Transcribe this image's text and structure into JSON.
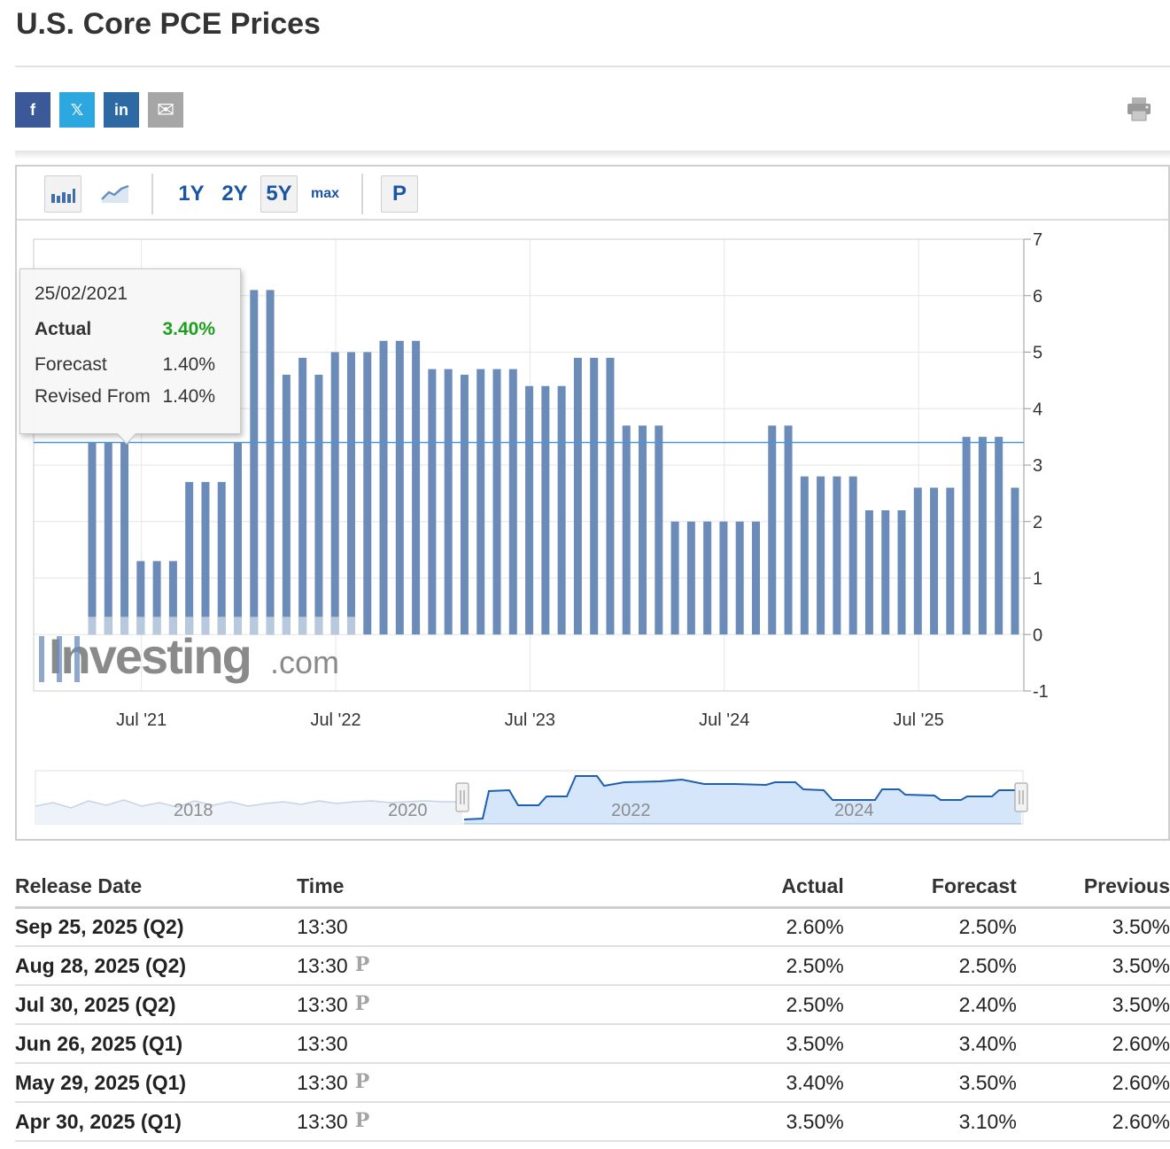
{
  "page": {
    "title": "U.S. Core PCE Prices"
  },
  "colors": {
    "bar": "#6b8cb8",
    "bar_light": "#b8c9de",
    "up": "#1e9e1e",
    "down": "#e01919",
    "link": "#1a55a3"
  },
  "share": [
    {
      "name": "facebook-share-button",
      "icon": "facebook-icon",
      "glyph": "f",
      "color": "#3b5998"
    },
    {
      "name": "twitter-share-button",
      "icon": "x-icon",
      "glyph": "𝕏",
      "color": "#2ca7e0"
    },
    {
      "name": "linkedin-share-button",
      "icon": "linkedin-icon",
      "glyph": "in",
      "color": "#2d6aa4"
    },
    {
      "name": "email-share-button",
      "icon": "envelope-icon",
      "glyph": "✉",
      "color": "#a6a6a6"
    }
  ],
  "toolbar": {
    "range_1y": "1Y",
    "range_2y": "2Y",
    "range_5y": "5Y",
    "range_max": "max",
    "preliminary": "P",
    "selected_range": "5Y"
  },
  "tooltip": {
    "date": "25/02/2021",
    "actual_label": "Actual",
    "actual_value": "3.40%",
    "forecast_label": "Forecast",
    "forecast_value": "1.40%",
    "revised_label": "Revised From",
    "revised_value": "1.40%"
  },
  "watermark": {
    "brand": "Investing",
    "suffix": ".com"
  },
  "chart_data": {
    "type": "bar",
    "y_ticks": [
      "7",
      "6",
      "5",
      "4",
      "3",
      "2",
      "1",
      "0",
      "-1"
    ],
    "ylim": [
      -1,
      7
    ],
    "x_tick_labels": [
      "Jul '21",
      "Jul '22",
      "Jul '23",
      "Jul '24",
      "Jul '25"
    ],
    "x_tick_months": [
      6,
      18,
      30,
      42,
      54
    ],
    "x_axis_start": "Jul 2020",
    "grid": true,
    "highlight_line_value": 3.4,
    "values": [
      3.4,
      3.4,
      3.4,
      1.3,
      1.3,
      1.3,
      2.7,
      2.7,
      2.7,
      3.4,
      6.1,
      6.1,
      4.6,
      4.9,
      4.6,
      5.0,
      5.0,
      5.0,
      5.2,
      5.2,
      5.2,
      4.7,
      4.7,
      4.6,
      4.7,
      4.7,
      4.7,
      4.4,
      4.4,
      4.4,
      4.9,
      4.9,
      4.9,
      3.7,
      3.7,
      3.7,
      2.0,
      2.0,
      2.0,
      2.0,
      2.0,
      2.0,
      3.7,
      3.7,
      2.8,
      2.8,
      2.8,
      2.8,
      2.2,
      2.2,
      2.2,
      2.6,
      2.6,
      2.6,
      3.5,
      3.5,
      3.5,
      2.6
    ],
    "navigator": {
      "labels": [
        "2018",
        "2020",
        "2022",
        "2024"
      ]
    }
  },
  "table": {
    "headers": {
      "date": "Release Date",
      "time": "Time",
      "actual": "Actual",
      "forecast": "Forecast",
      "previous": "Previous"
    },
    "rows": [
      {
        "date": "Sep 25, 2025 (Q2)",
        "time": "13:30",
        "prelim": "",
        "actual": "2.60%",
        "actual_dir": "up",
        "forecast": "2.50%",
        "previous": "3.50%"
      },
      {
        "date": "Aug 28, 2025 (Q2)",
        "time": "13:30",
        "prelim": "P",
        "actual": "2.50%",
        "actual_dir": "none",
        "forecast": "2.50%",
        "previous": "3.50%"
      },
      {
        "date": "Jul 30, 2025 (Q2)",
        "time": "13:30",
        "prelim": "P",
        "actual": "2.50%",
        "actual_dir": "up",
        "forecast": "2.40%",
        "previous": "3.50%"
      },
      {
        "date": "Jun 26, 2025 (Q1)",
        "time": "13:30",
        "prelim": "",
        "actual": "3.50%",
        "actual_dir": "up",
        "forecast": "3.40%",
        "previous": "2.60%"
      },
      {
        "date": "May 29, 2025 (Q1)",
        "time": "13:30",
        "prelim": "P",
        "actual": "3.40%",
        "actual_dir": "down",
        "forecast": "3.50%",
        "previous": "2.60%"
      },
      {
        "date": "Apr 30, 2025 (Q1)",
        "time": "13:30",
        "prelim": "P",
        "actual": "3.50%",
        "actual_dir": "up",
        "forecast": "3.10%",
        "previous": "2.60%"
      }
    ]
  }
}
